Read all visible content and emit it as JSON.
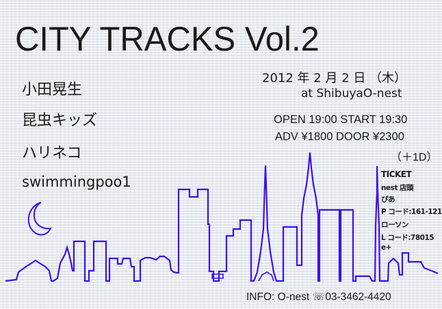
{
  "title": "CITY TRACKS Vol.2",
  "artists": [
    "小田晃生",
    "昆虫キッズ",
    "ハリネコ",
    "swimmingpoo1"
  ],
  "event": {
    "date": "2012 年 2 月 2 日 （木）",
    "venue": "at ShibuyaO-nest",
    "times": "OPEN 19:00  START 19:30",
    "prices": "ADV ¥1800  DOOR ¥2300",
    "drink": "（＋1D）"
  },
  "ticket": {
    "heading": "TICKET",
    "items": [
      "nest 店頭",
      "ぴあ",
      "P コード:161-121",
      "ローソン",
      "L コード:78015",
      "e+"
    ]
  },
  "info": {
    "label": "INFO: O-nest",
    "phone_icon": "phone-icon",
    "phone": "03-3462-4420"
  },
  "colors": {
    "skyline": "#3a10f0",
    "background": "#e9edf2",
    "text": "#1a1a1a"
  }
}
